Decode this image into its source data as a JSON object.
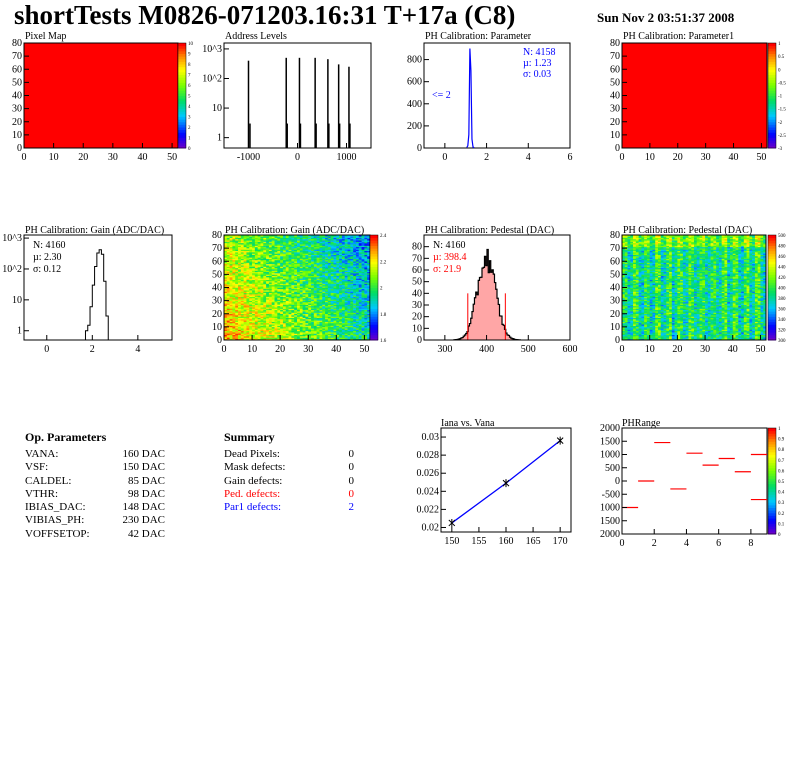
{
  "header": {
    "title": "shortTests M0826-071203.16:31 T+17a (C8)",
    "date": "Sun Nov  2 03:51:37 2008"
  },
  "colors": {
    "histogram_line": "#000000",
    "fit_blue": "#0000ff",
    "fit_red": "#ff0000",
    "map_fill": "#ff0000",
    "pedestal_fill": "#ff8080"
  },
  "chart_data": [
    {
      "id": "pixel-map",
      "type": "heatmap",
      "title": "Pixel Map",
      "xlim": [
        0,
        52
      ],
      "ylim": [
        0,
        80
      ],
      "x_ticks": [
        "0",
        "10",
        "20",
        "30",
        "40",
        "50"
      ],
      "y_ticks": [
        "0",
        "10",
        "20",
        "30",
        "40",
        "50",
        "60",
        "70",
        "80"
      ],
      "uniform_value": 10,
      "palette_ticks": [
        "10",
        "9",
        "8",
        "7",
        "6",
        "5",
        "4",
        "3",
        "2",
        "1",
        "0"
      ]
    },
    {
      "id": "address-levels",
      "type": "bar",
      "title": "Address Levels",
      "log_y": true,
      "xlim": [
        -1500,
        1500
      ],
      "x_ticks": [
        "-1000",
        "0",
        "1000"
      ],
      "y_ticks": [
        "1",
        "10",
        "10^2",
        "10^3"
      ],
      "x": [
        -1000,
        -970,
        -230,
        -210,
        40,
        60,
        360,
        380,
        620,
        640,
        840,
        860,
        1050,
        1070
      ],
      "values": [
        400,
        3,
        500,
        3,
        500,
        3,
        500,
        3,
        450,
        3,
        300,
        3,
        250,
        3
      ]
    },
    {
      "id": "ph-param",
      "type": "bar",
      "title": "PH Calibration: Parameter",
      "xlim": [
        -1,
        6
      ],
      "ylim": [
        0,
        950
      ],
      "x_ticks": [
        "0",
        "2",
        "4",
        "6"
      ],
      "y_ticks": [
        "0",
        "200",
        "400",
        "600",
        "800"
      ],
      "x": [
        1.05,
        1.1,
        1.15,
        1.2,
        1.25,
        1.3,
        1.35,
        1.4
      ],
      "values": [
        5,
        20,
        120,
        900,
        700,
        80,
        10,
        2
      ],
      "stats": {
        "n": "N: 4158",
        "mean": "µ: 1.23",
        "sigma": "σ: 0.03"
      },
      "annotation": "<= 2"
    },
    {
      "id": "ph-param1",
      "type": "heatmap",
      "title": "PH Calibration: Parameter1",
      "xlim": [
        0,
        52
      ],
      "ylim": [
        0,
        80
      ],
      "x_ticks": [
        "0",
        "10",
        "20",
        "30",
        "40",
        "50"
      ],
      "y_ticks": [
        "0",
        "10",
        "20",
        "30",
        "40",
        "50",
        "60",
        "70",
        "80"
      ],
      "palette_ticks": [
        "1",
        "0.5",
        "0",
        "-0.5",
        "-1",
        "-1.5",
        "-2",
        "-2.5",
        "-3"
      ]
    },
    {
      "id": "gain-hist",
      "type": "bar",
      "title": "PH Calibration: Gain (ADC/DAC)",
      "log_y": true,
      "xlim": [
        -1,
        5.5
      ],
      "x_ticks": [
        "0",
        "2",
        "4"
      ],
      "y_ticks": [
        "1",
        "10",
        "10^2",
        "10^3"
      ],
      "x": [
        1.7,
        1.8,
        1.9,
        2.0,
        2.1,
        2.2,
        2.3,
        2.4,
        2.5,
        2.6
      ],
      "values": [
        1,
        1.5,
        6,
        30,
        120,
        330,
        420,
        300,
        40,
        3
      ],
      "stats": {
        "n": "N: 4160",
        "mean": "µ: 2.30",
        "sigma": "σ: 0.12"
      }
    },
    {
      "id": "gain-map",
      "type": "heatmap",
      "title": "PH Calibration: Gain (ADC/DAC)",
      "xlim": [
        0,
        52
      ],
      "ylim": [
        0,
        80
      ],
      "x_ticks": [
        "0",
        "10",
        "20",
        "30",
        "40",
        "50"
      ],
      "y_ticks": [
        "0",
        "10",
        "20",
        "30",
        "40",
        "50",
        "60",
        "70",
        "80"
      ],
      "palette_ticks": [
        "2.4",
        "2.2",
        "2",
        "1.8",
        "1.6"
      ]
    },
    {
      "id": "pedestal-hist",
      "type": "bar",
      "title": "PH Calibration: Pedestal (DAC)",
      "xlim": [
        250,
        600
      ],
      "ylim": [
        0,
        90
      ],
      "x_ticks": [
        "300",
        "400",
        "500",
        "600"
      ],
      "y_ticks": [
        "0",
        "10",
        "20",
        "30",
        "40",
        "50",
        "60",
        "70",
        "80"
      ],
      "mean": 398.4,
      "sigma": 21.9,
      "peak": 70,
      "cut_lines": [
        355,
        445
      ],
      "stats": {
        "n": "N: 4160",
        "mean": "µ: 398.4",
        "sigma": "σ: 21.9"
      }
    },
    {
      "id": "pedestal-map",
      "type": "heatmap",
      "title": "PH Calibration: Pedestal (DAC)",
      "xlim": [
        0,
        52
      ],
      "ylim": [
        0,
        80
      ],
      "x_ticks": [
        "0",
        "10",
        "20",
        "30",
        "40",
        "50"
      ],
      "y_ticks": [
        "0",
        "10",
        "20",
        "30",
        "40",
        "50",
        "60",
        "70",
        "80"
      ],
      "palette_ticks": [
        "500",
        "480",
        "460",
        "440",
        "420",
        "400",
        "380",
        "360",
        "340",
        "320",
        "300"
      ]
    },
    {
      "id": "iana-vana",
      "type": "line",
      "title": "Iana vs. Vana",
      "xlim": [
        148,
        172
      ],
      "ylim": [
        0.0195,
        0.031
      ],
      "x_ticks": [
        "150",
        "155",
        "160",
        "165",
        "170"
      ],
      "y_ticks": [
        "0.02",
        "0.022",
        "0.024",
        "0.026",
        "0.028",
        "0.03"
      ],
      "x": [
        150,
        160,
        170
      ],
      "y": [
        0.0205,
        0.0249,
        0.0296
      ]
    },
    {
      "id": "ph-range",
      "type": "heatmap",
      "title": "PHRange",
      "xlim": [
        0,
        9
      ],
      "ylim": [
        -2000,
        2000
      ],
      "x_ticks": [
        "0",
        "2",
        "4",
        "6",
        "8"
      ],
      "y_ticks": [
        "2000",
        "1500",
        "1000",
        "500",
        "0",
        "-500",
        "1000",
        "1500",
        "2000"
      ],
      "segments": [
        {
          "x0": 0,
          "x1": 1,
          "y": -1000
        },
        {
          "x0": 1,
          "x1": 2,
          "y": 0
        },
        {
          "x0": 2,
          "x1": 3,
          "y": 1450
        },
        {
          "x0": 3,
          "x1": 4,
          "y": -300
        },
        {
          "x0": 4,
          "x1": 5,
          "y": 1050
        },
        {
          "x0": 5,
          "x1": 6,
          "y": 600
        },
        {
          "x0": 6,
          "x1": 7,
          "y": 850
        },
        {
          "x0": 7,
          "x1": 8,
          "y": 350
        },
        {
          "x0": 8,
          "x1": 9,
          "y": 1000
        },
        {
          "x0": 8,
          "x1": 9,
          "y": -700
        }
      ],
      "palette_ticks": [
        "1",
        "0.9",
        "0.8",
        "0.7",
        "0.6",
        "0.5",
        "0.4",
        "0.3",
        "0.2",
        "0.1",
        "0"
      ]
    }
  ],
  "op_parameters": {
    "title": "Op. Parameters",
    "rows": [
      {
        "name": "VANA:",
        "value": "160 DAC"
      },
      {
        "name": "VSF:",
        "value": "150 DAC"
      },
      {
        "name": "CALDEL:",
        "value": "85 DAC"
      },
      {
        "name": "VTHR:",
        "value": "98 DAC"
      },
      {
        "name": "IBIAS_DAC:",
        "value": "148 DAC"
      },
      {
        "name": "VIBIAS_PH:",
        "value": "230 DAC"
      },
      {
        "name": "VOFFSETOP:",
        "value": "42 DAC"
      }
    ]
  },
  "summary": {
    "title": "Summary",
    "rows": [
      {
        "name": "Dead Pixels:",
        "value": "0",
        "color": "#000000"
      },
      {
        "name": "Mask defects:",
        "value": "0",
        "color": "#000000"
      },
      {
        "name": "Gain defects:",
        "value": "0",
        "color": "#000000"
      },
      {
        "name": "Ped. defects:",
        "value": "0",
        "color": "#ff0000"
      },
      {
        "name": "Par1 defects:",
        "value": "2",
        "color": "#0000ff"
      }
    ]
  }
}
